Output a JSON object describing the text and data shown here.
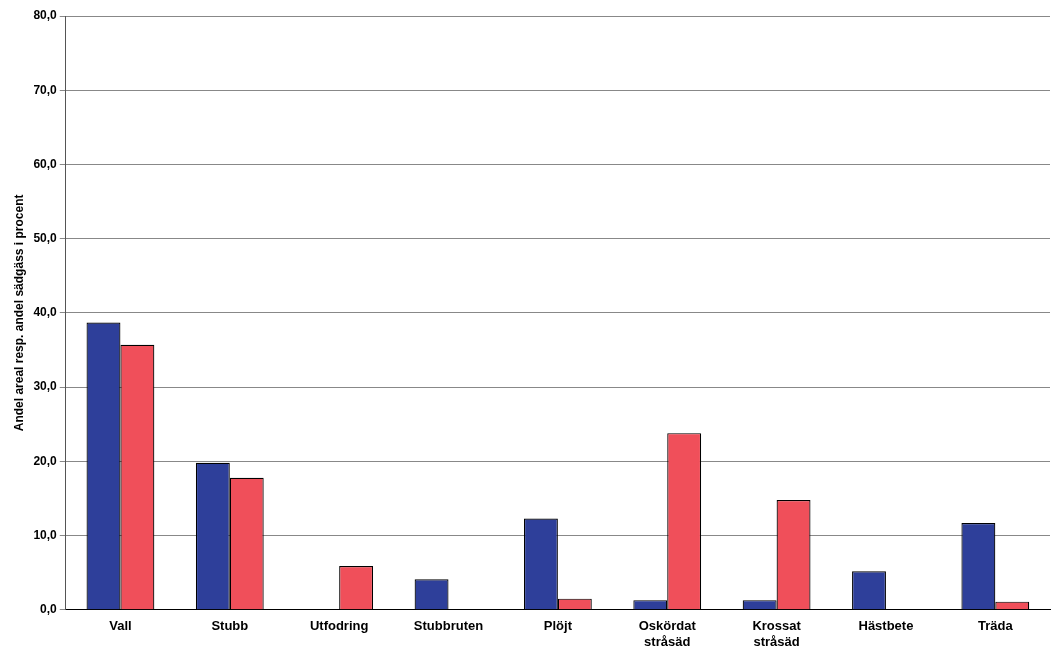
{
  "chart_data": {
    "type": "bar",
    "ylabel": "Andel areal resp. andel sädgäss i procent",
    "categories": [
      "Vall",
      "Stubb",
      "Utfodring",
      "Stubbruten",
      "Plöjt",
      "Oskördat stråsäd",
      "Krossat stråsäd",
      "Hästbete",
      "Träda"
    ],
    "series": [
      {
        "color": "#2e3f9a",
        "values": [
          38.7,
          19.8,
          0,
          4.1,
          12.3,
          1.3,
          1.3,
          5.2,
          11.7
        ]
      },
      {
        "color": "#f04f5a",
        "values": [
          35.7,
          17.8,
          5.9,
          0,
          1.5,
          23.8,
          14.8,
          0,
          1.1
        ]
      }
    ],
    "ylim": [
      0,
      80
    ],
    "yticks": [
      {
        "value": 0,
        "label": "0,0"
      },
      {
        "value": 10,
        "label": "10,0"
      },
      {
        "value": 20,
        "label": "20,0"
      },
      {
        "value": 30,
        "label": "30,0"
      },
      {
        "value": 40,
        "label": "40,0"
      },
      {
        "value": 50,
        "label": "50,0"
      },
      {
        "value": 60,
        "label": "60,0"
      },
      {
        "value": 70,
        "label": "70,0"
      },
      {
        "value": 80,
        "label": "80,0"
      }
    ],
    "grid": "y",
    "legend": false
  }
}
